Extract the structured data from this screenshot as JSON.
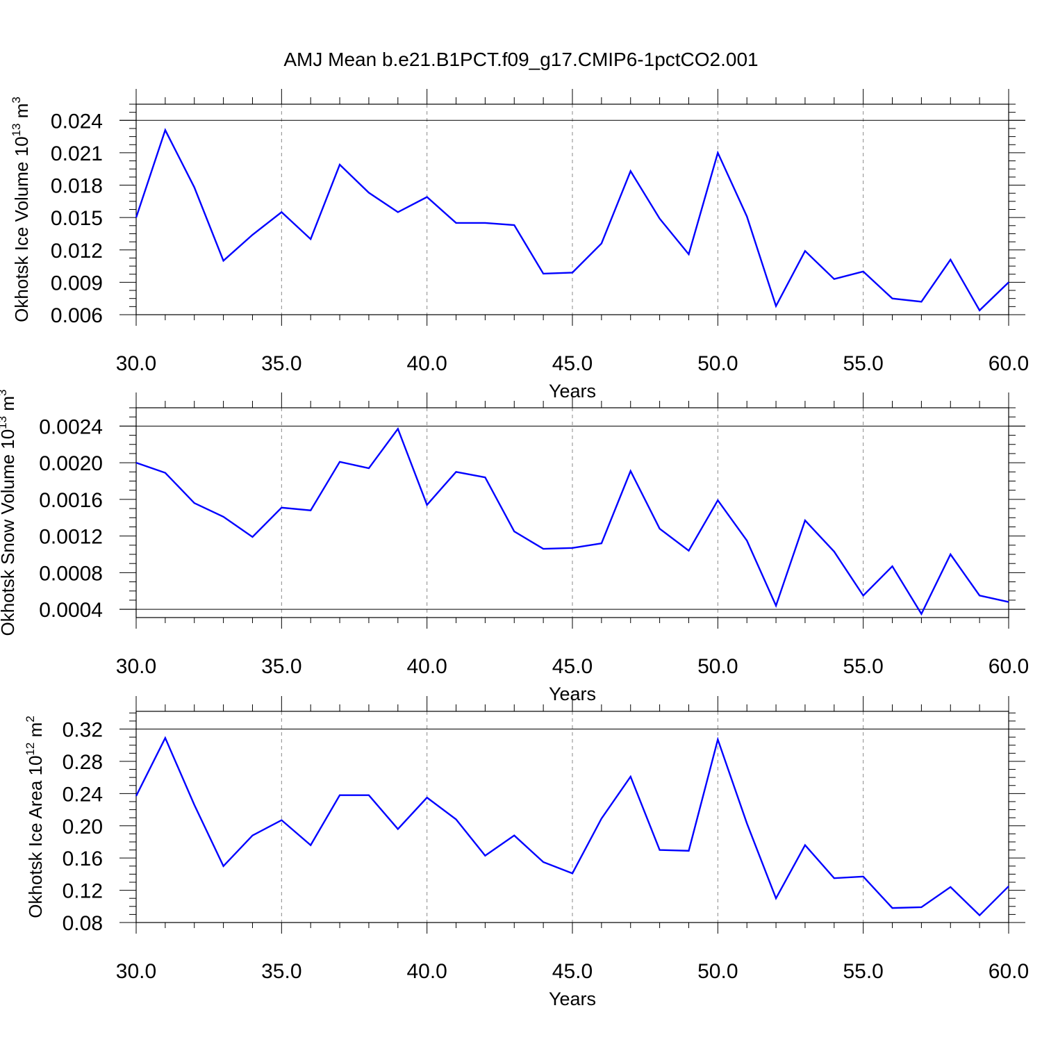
{
  "figure": {
    "title": "AMJ Mean b.e21.B1PCT.f09_g17.CMIP6-1pctCO2.001",
    "line_color": "#0000ff"
  },
  "chart_data": [
    {
      "type": "line",
      "ylabel_main": "Okhotsk Ice Volume 10",
      "ylabel_exp": "13",
      "ylabel_unit": "m",
      "ylabel_unit_exp": "3",
      "xlabel": "Years",
      "xlim": [
        30,
        60
      ],
      "ylim": [
        0.006,
        0.0255
      ],
      "xticks": [
        30,
        35,
        40,
        45,
        50,
        55,
        60
      ],
      "xtick_labels": [
        "30.0",
        "35.0",
        "40.0",
        "45.0",
        "50.0",
        "55.0",
        "60.0"
      ],
      "yticks": [
        0.006,
        0.009,
        0.012,
        0.015,
        0.018,
        0.021,
        0.024
      ],
      "ytick_labels": [
        "0.006",
        "0.009",
        "0.012",
        "0.015",
        "0.018",
        "0.021",
        "0.024"
      ],
      "grid": "vertical dashed",
      "x": [
        30,
        31,
        32,
        33,
        34,
        35,
        36,
        37,
        38,
        39,
        40,
        41,
        42,
        43,
        44,
        45,
        46,
        47,
        48,
        49,
        50,
        51,
        52,
        53,
        54,
        55,
        56,
        57,
        58,
        59,
        60
      ],
      "series": [
        {
          "values": [
            0.015,
            0.0231,
            0.0178,
            0.011,
            0.0134,
            0.0155,
            0.013,
            0.0199,
            0.0173,
            0.0155,
            0.0169,
            0.0145,
            0.0145,
            0.0143,
            0.0098,
            0.0099,
            0.0126,
            0.0193,
            0.0149,
            0.0116,
            0.021,
            0.0151,
            0.0068,
            0.0119,
            0.0093,
            0.01,
            0.0075,
            0.0072,
            0.0111,
            0.0064,
            0.009
          ]
        }
      ]
    },
    {
      "type": "line",
      "ylabel_main": "Okhotsk Snow Volume 10",
      "ylabel_exp": "13",
      "ylabel_unit": "m",
      "ylabel_unit_exp": "3",
      "xlabel": "Years",
      "xlim": [
        30,
        60
      ],
      "ylim": [
        0.00031,
        0.0026
      ],
      "xticks": [
        30,
        35,
        40,
        45,
        50,
        55,
        60
      ],
      "xtick_labels": [
        "30.0",
        "35.0",
        "40.0",
        "45.0",
        "50.0",
        "55.0",
        "60.0"
      ],
      "yticks": [
        0.0004,
        0.0008,
        0.0012,
        0.0016,
        0.002,
        0.0024
      ],
      "ytick_labels": [
        "0.0004",
        "0.0008",
        "0.0012",
        "0.0016",
        "0.0020",
        "0.0024"
      ],
      "grid": "vertical dashed",
      "x": [
        30,
        31,
        32,
        33,
        34,
        35,
        36,
        37,
        38,
        39,
        40,
        41,
        42,
        43,
        44,
        45,
        46,
        47,
        48,
        49,
        50,
        51,
        52,
        53,
        54,
        55,
        56,
        57,
        58,
        59,
        60
      ],
      "series": [
        {
          "values": [
            0.002,
            0.00189,
            0.00156,
            0.00141,
            0.00119,
            0.00151,
            0.00148,
            0.00201,
            0.00194,
            0.00237,
            0.00154,
            0.0019,
            0.00184,
            0.00125,
            0.00106,
            0.00107,
            0.00112,
            0.00191,
            0.00128,
            0.00104,
            0.00159,
            0.00115,
            0.00044,
            0.00137,
            0.00103,
            0.00055,
            0.00087,
            0.00035,
            0.001,
            0.00055,
            0.00048
          ]
        }
      ]
    },
    {
      "type": "line",
      "ylabel_main": "Okhotsk Ice Area 10",
      "ylabel_exp": "12",
      "ylabel_unit": "m",
      "ylabel_unit_exp": "2",
      "xlabel": "Years",
      "xlim": [
        30,
        60
      ],
      "ylim": [
        0.08,
        0.342
      ],
      "xticks": [
        30,
        35,
        40,
        45,
        50,
        55,
        60
      ],
      "xtick_labels": [
        "30.0",
        "35.0",
        "40.0",
        "45.0",
        "50.0",
        "55.0",
        "60.0"
      ],
      "yticks": [
        0.08,
        0.12,
        0.16,
        0.2,
        0.24,
        0.28,
        0.32
      ],
      "ytick_labels": [
        "0.08",
        "0.12",
        "0.16",
        "0.20",
        "0.24",
        "0.28",
        "0.32"
      ],
      "grid": "vertical dashed",
      "x": [
        30,
        31,
        32,
        33,
        34,
        35,
        36,
        37,
        38,
        39,
        40,
        41,
        42,
        43,
        44,
        45,
        46,
        47,
        48,
        49,
        50,
        51,
        52,
        53,
        54,
        55,
        56,
        57,
        58,
        59,
        60
      ],
      "series": [
        {
          "values": [
            0.237,
            0.309,
            0.226,
            0.15,
            0.188,
            0.207,
            0.176,
            0.238,
            0.238,
            0.196,
            0.235,
            0.208,
            0.163,
            0.188,
            0.155,
            0.141,
            0.209,
            0.261,
            0.17,
            0.169,
            0.307,
            0.203,
            0.11,
            0.176,
            0.135,
            0.137,
            0.098,
            0.099,
            0.124,
            0.089,
            0.125
          ]
        }
      ]
    }
  ]
}
